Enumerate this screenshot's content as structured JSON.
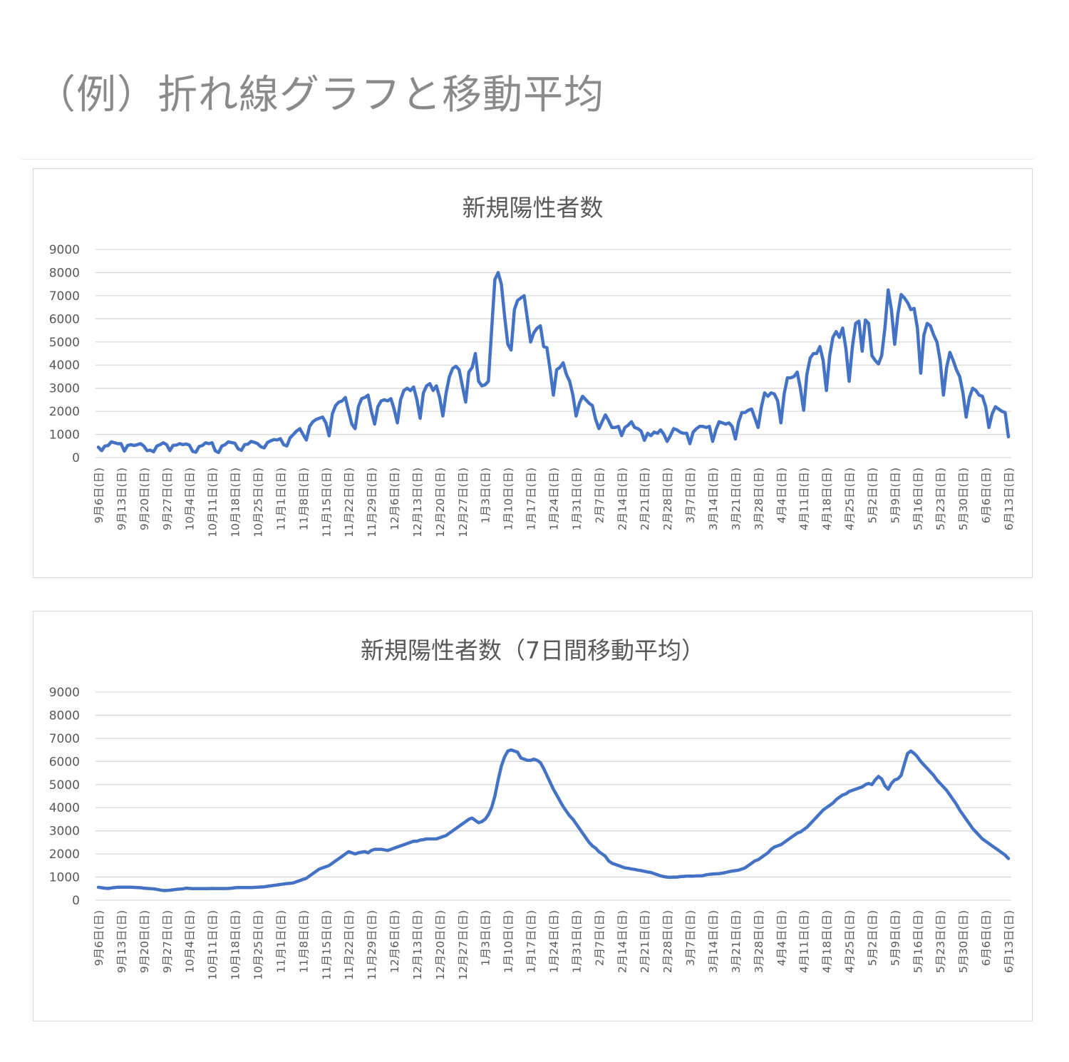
{
  "page": {
    "title": "（例）折れ線グラフと移動平均"
  },
  "colors": {
    "line": "#4472C4",
    "grid": "#d9d9d9",
    "text": "#595959",
    "page_title": "#8a8a8a"
  },
  "chart_data": [
    {
      "type": "line",
      "title": "新規陽性者数",
      "xlabel": "",
      "ylabel": "",
      "ylim": [
        0,
        9000
      ],
      "yticks": [
        0,
        1000,
        2000,
        3000,
        4000,
        5000,
        6000,
        7000,
        8000,
        9000
      ],
      "grid": true,
      "legend": "none",
      "categories": [
        "9月6日(日)",
        "9月13日(日)",
        "9月20日(日)",
        "9月27日(日)",
        "10月4日(日)",
        "10月11日(日)",
        "10月18日(日)",
        "10月25日(日)",
        "11月1日(日)",
        "11月8日(日)",
        "11月15日(日)",
        "11月22日(日)",
        "11月29日(日)",
        "12月6日(日)",
        "12月13日(日)",
        "12月20日(日)",
        "12月27日(日)",
        "1月3日(日)",
        "1月10日(日)",
        "1月17日(日)",
        "1月24日(日)",
        "1月31日(日)",
        "2月7日(日)",
        "2月14日(日)",
        "2月21日(日)",
        "2月28日(日)",
        "3月7日(日)",
        "3月14日(日)",
        "3月21日(日)",
        "3月28日(日)",
        "4月4日(日)",
        "4月11日(日)",
        "4月18日(日)",
        "4月25日(日)",
        "5月2日(日)",
        "5月9日(日)",
        "5月16日(日)",
        "5月23日(日)",
        "5月30日(日)",
        "6月6日(日)",
        "6月13日(日)"
      ],
      "series": [
        {
          "name": "新規陽性者数",
          "weekly_daily_values_sun_to_sat": [
            [
              450,
              300,
              500,
              520,
              680,
              640,
              600
            ],
            [
              600,
              280,
              520,
              560,
              520,
              560,
              600
            ],
            [
              500,
              300,
              320,
              250,
              500,
              560,
              640
            ],
            [
              560,
              300,
              530,
              540,
              600,
              560,
              590
            ],
            [
              540,
              270,
              230,
              480,
              520,
              640,
              600
            ],
            [
              640,
              290,
              220,
              500,
              560,
              680,
              650
            ],
            [
              620,
              380,
              310,
              560,
              580,
              700,
              660
            ],
            [
              600,
              470,
              420,
              650,
              720,
              780,
              760
            ],
            [
              820,
              560,
              500,
              860,
              1000,
              1150,
              1250
            ],
            [
              1000,
              760,
              1350,
              1550,
              1650,
              1700,
              1750
            ],
            [
              1500,
              940,
              1900,
              2250,
              2400,
              2450,
              2600
            ],
            [
              2000,
              1450,
              1250,
              2200,
              2550,
              2600,
              2700
            ],
            [
              2000,
              1450,
              2200,
              2450,
              2500,
              2450,
              2550
            ],
            [
              2100,
              1500,
              2500,
              2900,
              3000,
              2900,
              3050
            ],
            [
              2500,
              1700,
              2800,
              3100,
              3200,
              2900,
              3100
            ],
            [
              2600,
              1800,
              2800,
              3500,
              3850,
              3950,
              3800
            ],
            [
              3100,
              2400,
              3700,
              3900,
              4500,
              3300,
              3100
            ],
            [
              3150,
              3300,
              5500,
              7700,
              8000,
              7500,
              6100
            ],
            [
              4900,
              4650,
              6400,
              6800,
              6900,
              7000,
              6000
            ],
            [
              5000,
              5400,
              5600,
              5700,
              4800,
              4750,
              3800
            ],
            [
              2700,
              3800,
              3900,
              4100,
              3600,
              3300,
              2700
            ],
            [
              1800,
              2350,
              2650,
              2500,
              2350,
              2250,
              1650
            ],
            [
              1250,
              1550,
              1850,
              1600,
              1300,
              1300,
              1350
            ],
            [
              950,
              1300,
              1400,
              1550,
              1300,
              1250,
              1150
            ],
            [
              750,
              1050,
              950,
              1100,
              1050,
              1200,
              1000
            ],
            [
              700,
              950,
              1250,
              1200,
              1100,
              1050,
              1050
            ],
            [
              600,
              1100,
              1250,
              1350,
              1350,
              1300,
              1350
            ],
            [
              700,
              1200,
              1550,
              1500,
              1450,
              1500,
              1350
            ],
            [
              800,
              1550,
              1950,
              1950,
              2050,
              2100,
              1700
            ],
            [
              1300,
              2200,
              2800,
              2650,
              2800,
              2750,
              2450
            ],
            [
              1500,
              2750,
              3450,
              3450,
              3500,
              3700,
              3000
            ],
            [
              2050,
              3600,
              4300,
              4500,
              4500,
              4800,
              4200
            ],
            [
              2900,
              4400,
              5200,
              5450,
              5200,
              5600,
              4700
            ],
            [
              3300,
              4800,
              5800,
              5900,
              4600,
              5950,
              5800
            ],
            [
              4400,
              4200,
              4050,
              4400,
              5600,
              7250,
              6400
            ],
            [
              4900,
              6200,
              7050,
              6900,
              6700,
              6400,
              6450
            ],
            [
              5600,
              3650,
              5300,
              5800,
              5700,
              5300,
              5000
            ],
            [
              4200,
              2700,
              3900,
              4550,
              4200,
              3800,
              3500
            ],
            [
              2800,
              1750,
              2600,
              3000,
              2900,
              2700,
              2650
            ],
            [
              2200,
              1300,
              1900,
              2200,
              2100,
              2000,
              1950
            ],
            [
              900
            ]
          ]
        }
      ]
    },
    {
      "type": "line",
      "title": "新規陽性者数（7日間移動平均）",
      "xlabel": "",
      "ylabel": "",
      "ylim": [
        0,
        9000
      ],
      "yticks": [
        0,
        1000,
        2000,
        3000,
        4000,
        5000,
        6000,
        7000,
        8000,
        9000
      ],
      "grid": true,
      "legend": "none",
      "categories": [
        "9月6日(日)",
        "9月13日(日)",
        "9月20日(日)",
        "9月27日(日)",
        "10月4日(日)",
        "10月11日(日)",
        "10月18日(日)",
        "10月25日(日)",
        "11月1日(日)",
        "11月8日(日)",
        "11月15日(日)",
        "11月22日(日)",
        "11月29日(日)",
        "12月6日(日)",
        "12月13日(日)",
        "12月20日(日)",
        "12月27日(日)",
        "1月3日(日)",
        "1月10日(日)",
        "1月17日(日)",
        "1月24日(日)",
        "1月31日(日)",
        "2月7日(日)",
        "2月14日(日)",
        "2月21日(日)",
        "2月28日(日)",
        "3月7日(日)",
        "3月14日(日)",
        "3月21日(日)",
        "3月28日(日)",
        "4月4日(日)",
        "4月11日(日)",
        "4月18日(日)",
        "4月25日(日)",
        "5月2日(日)",
        "5月9日(日)",
        "5月16日(日)",
        "5月23日(日)",
        "5月30日(日)",
        "6月6日(日)",
        "6月13日(日)"
      ],
      "series": [
        {
          "name": "7日間移動平均",
          "weekly_values": [
            560,
            550,
            480,
            500,
            510,
            510,
            550,
            600,
            700,
            950,
            1500,
            2100,
            2150,
            2300,
            2600,
            2700,
            3300,
            3450,
            6450,
            6050,
            4800,
            3300,
            2100,
            1450,
            1200,
            1000,
            1050,
            1150,
            1300,
            1750,
            2400,
            3000,
            3800,
            4600,
            5000,
            5200,
            6000,
            5200,
            3800,
            2700,
            1750
          ],
          "weekly_values_note_daily_shape": [
            [
              560,
              540,
              520,
              510,
              530,
              550,
              560
            ],
            [
              560,
              560,
              560,
              560,
              555,
              550,
              540
            ],
            [
              520,
              510,
              500,
              490,
              470,
              440,
              420
            ],
            [
              420,
              430,
              450,
              470,
              480,
              490,
              520
            ],
            [
              510,
              500,
              500,
              500,
              500,
              500,
              505
            ],
            [
              510,
              505,
              505,
              505,
              505,
              510,
              520
            ],
            [
              540,
              550,
              550,
              550,
              550,
              550,
              555
            ],
            [
              560,
              570,
              580,
              600,
              620,
              640,
              660
            ],
            [
              680,
              700,
              720,
              730,
              750,
              800,
              850
            ],
            [
              900,
              950,
              1050,
              1150,
              1250,
              1350,
              1400
            ],
            [
              1450,
              1500,
              1600,
              1700,
              1800,
              1900,
              2000
            ],
            [
              2100,
              2050,
              2000,
              2050,
              2080,
              2100,
              2050
            ],
            [
              2150,
              2200,
              2200,
              2200,
              2180,
              2150,
              2200
            ],
            [
              2250,
              2300,
              2350,
              2400,
              2450,
              2500,
              2550
            ],
            [
              2550,
              2600,
              2620,
              2650,
              2650,
              2650,
              2650
            ],
            [
              2700,
              2750,
              2800,
              2900,
              3000,
              3100,
              3200
            ],
            [
              3300,
              3400,
              3500,
              3550,
              3450,
              3350,
              3400
            ],
            [
              3500,
              3700,
              4000,
              4500,
              5200,
              5800,
              6200
            ],
            [
              6450,
              6500,
              6450,
              6400,
              6150,
              6100,
              6050
            ],
            [
              6050,
              6100,
              6050,
              5950,
              5700,
              5400,
              5100
            ],
            [
              4800,
              4550,
              4300,
              4050,
              3850,
              3650,
              3500
            ],
            [
              3300,
              3100,
              2900,
              2700,
              2500,
              2350,
              2250
            ],
            [
              2100,
              2000,
              1900,
              1700,
              1600,
              1550,
              1500
            ],
            [
              1450,
              1400,
              1380,
              1350,
              1330,
              1300,
              1280
            ],
            [
              1250,
              1220,
              1200,
              1150,
              1100,
              1050,
              1020
            ],
            [
              1000,
              990,
              1000,
              1000,
              1020,
              1030,
              1040
            ],
            [
              1040,
              1040,
              1050,
              1050,
              1060,
              1100,
              1120
            ],
            [
              1130,
              1140,
              1150,
              1170,
              1200,
              1230,
              1260
            ],
            [
              1280,
              1300,
              1350,
              1400,
              1500,
              1600,
              1700
            ],
            [
              1750,
              1850,
              1950,
              2050,
              2200,
              2300,
              2350
            ],
            [
              2400,
              2500,
              2600,
              2700,
              2800,
              2900,
              2950
            ],
            [
              3050,
              3150,
              3300,
              3450,
              3600,
              3750,
              3900
            ],
            [
              4000,
              4100,
              4200,
              4350,
              4450,
              4550,
              4600
            ],
            [
              4700,
              4750,
              4800,
              4850,
              4900,
              5000,
              5050
            ],
            [
              5000,
              5200,
              5350,
              5250,
              4950,
              4800,
              5050
            ],
            [
              5200,
              5250,
              5400,
              5900,
              6350,
              6450,
              6350
            ],
            [
              6200,
              6000,
              5850,
              5700,
              5550,
              5400,
              5200
            ],
            [
              5050,
              4900,
              4750,
              4550,
              4350,
              4150,
              3900
            ],
            [
              3700,
              3500,
              3300,
              3100,
              2950,
              2800,
              2650
            ],
            [
              2550,
              2450,
              2350,
              2250,
              2150,
              2050,
              1950
            ],
            [
              1800
            ]
          ]
        }
      ]
    }
  ]
}
